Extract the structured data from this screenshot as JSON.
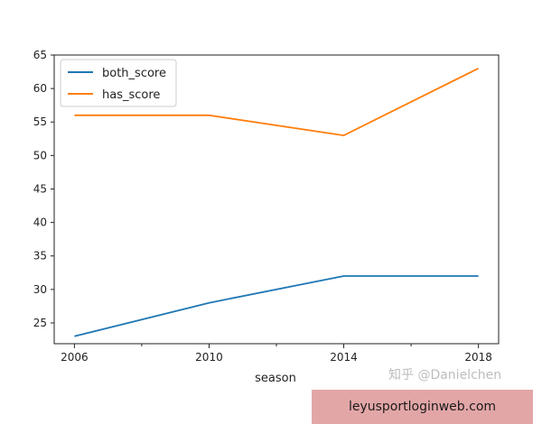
{
  "chart_data": {
    "type": "line",
    "xlabel": "season",
    "ylabel": "",
    "x": [
      2006,
      2010,
      2014,
      2018
    ],
    "x_ticks": [
      "2006",
      "2010",
      "2014",
      "2018"
    ],
    "y_ticks": [
      "25",
      "30",
      "35",
      "40",
      "45",
      "50",
      "55",
      "60",
      "65"
    ],
    "xlim": [
      2005.4,
      2018.6
    ],
    "ylim": [
      21.9,
      65
    ],
    "grid": false,
    "legend_position": "top-left",
    "series": [
      {
        "name": "both_score",
        "values": [
          23,
          28,
          32,
          32
        ],
        "color": "#1f77b4"
      },
      {
        "name": "has_score",
        "values": [
          56,
          56,
          53,
          63
        ],
        "color": "#ff7f0e"
      }
    ]
  },
  "watermark": {
    "text": "知乎 @Danielchen"
  },
  "banner": {
    "text": "leyusportloginweb.com"
  }
}
